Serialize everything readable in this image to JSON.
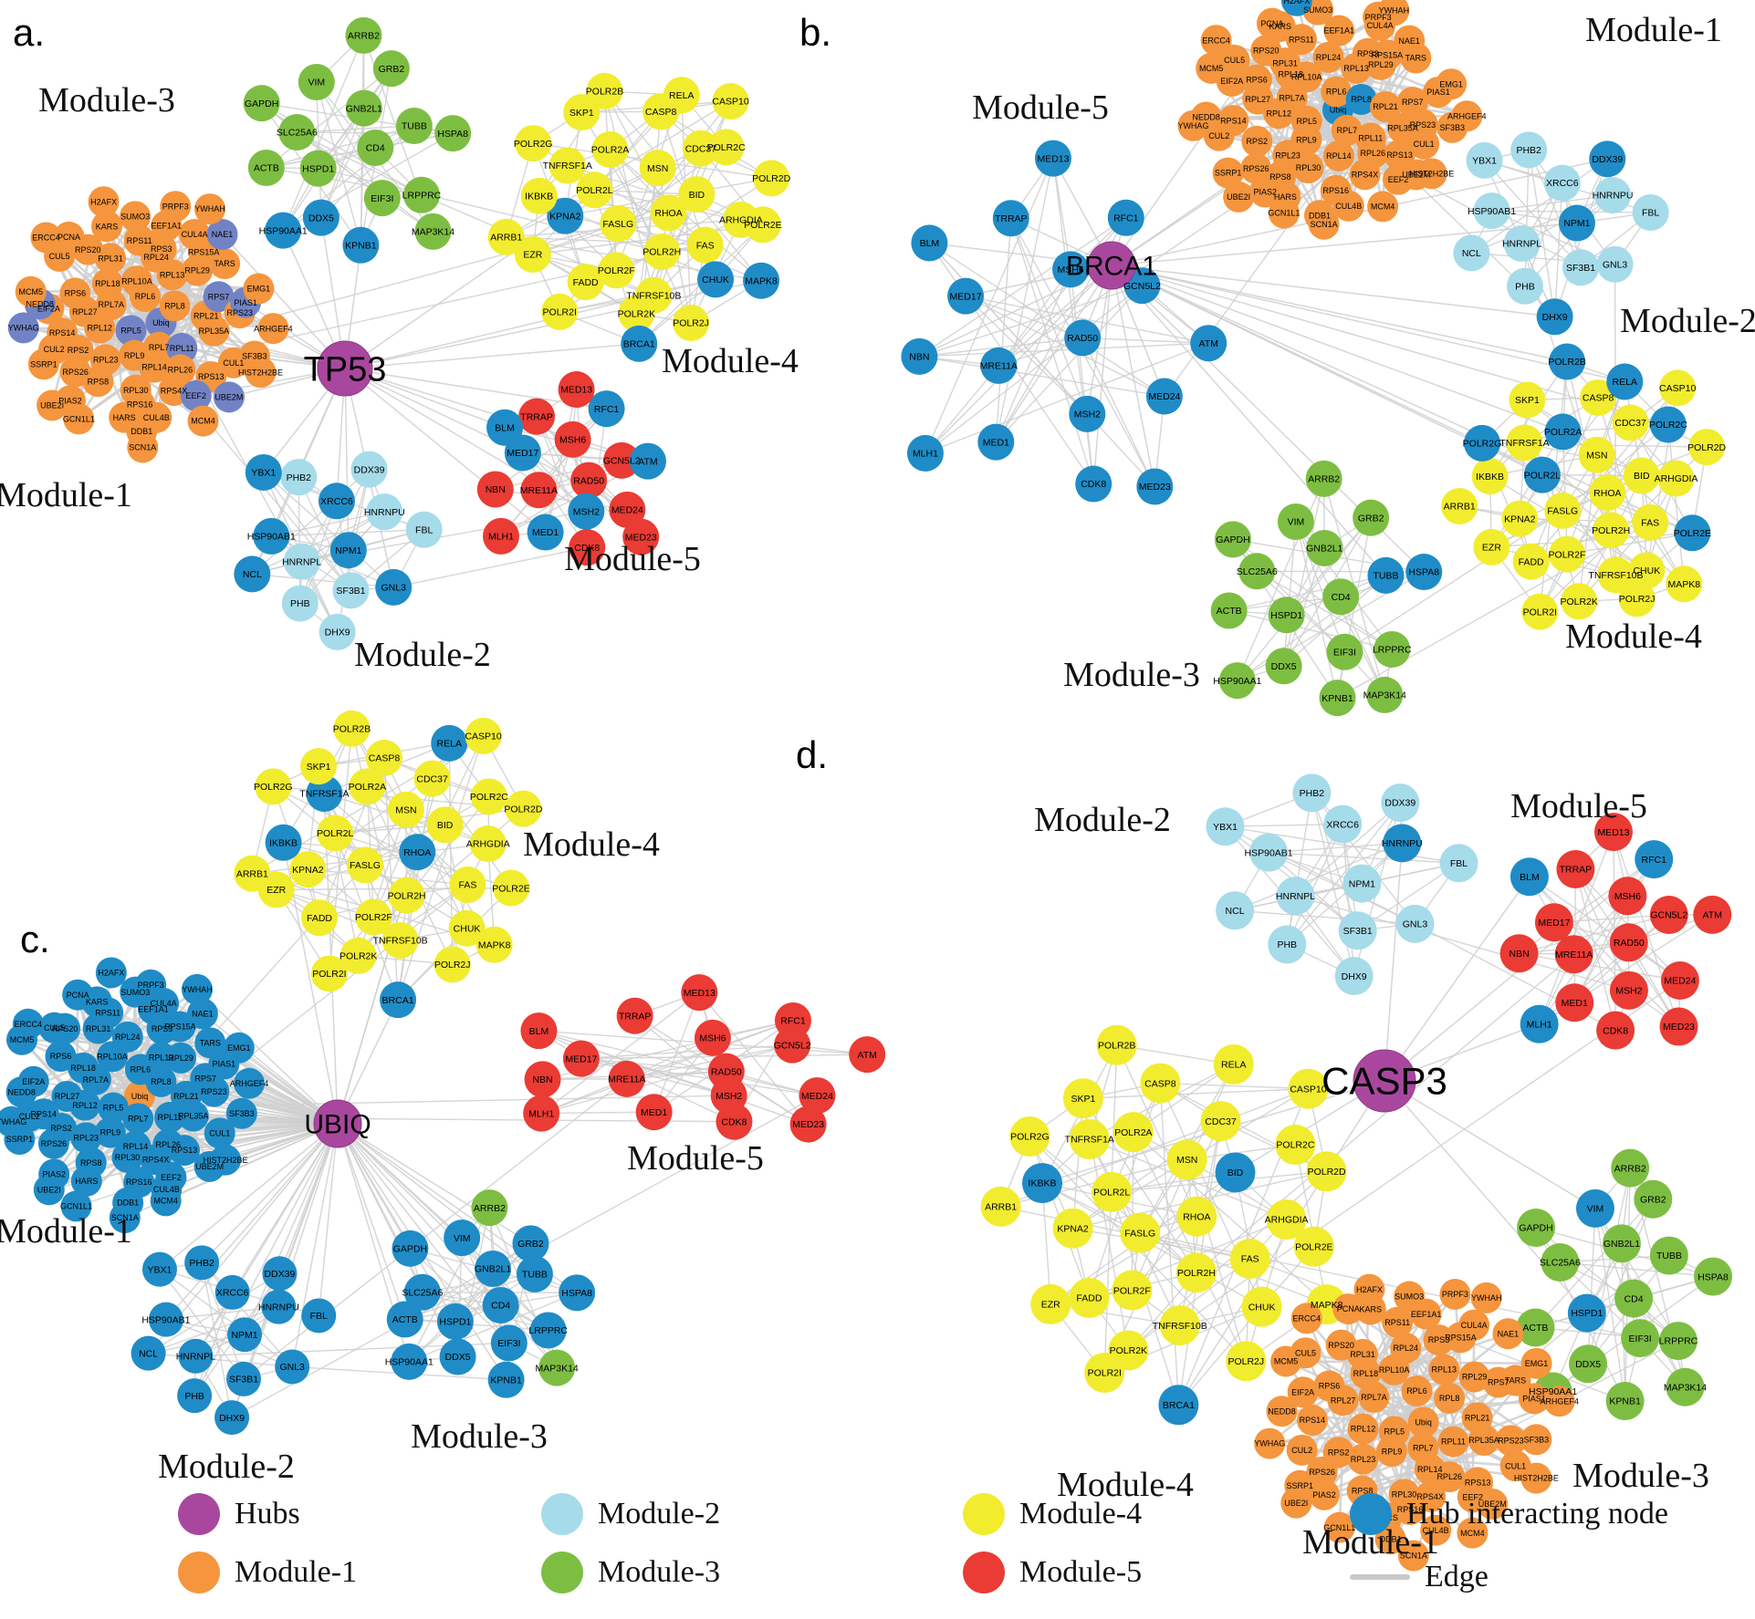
{
  "colors": {
    "hub": "#A9479F",
    "hub_stroke": "#8d3a85",
    "module1": "#F5953D",
    "module2": "#A6DBEA",
    "module3": "#7DBE42",
    "module4": "#F2EC2E",
    "module5": "#EA3B34",
    "blue": "#1F8CC7",
    "slate": "#7283C5",
    "edge": "#CFCFCF",
    "label": "#000000",
    "title": "#111111"
  },
  "gene_sets": {
    "module1": [
      "Ubiq",
      "RPL5",
      "RPL6",
      "RPL7",
      "RPL7A",
      "RPL8",
      "RPL9",
      "RPL10A",
      "RPL11",
      "RPL12",
      "RPL13",
      "RPL14",
      "RPL18",
      "RPL21",
      "RPL23",
      "RPL24",
      "RPL26",
      "RPL27",
      "RPL29",
      "RPL30",
      "RPL31",
      "RPL35A",
      "RPS2",
      "RPS3",
      "RPS4X",
      "RPS6",
      "RPS7",
      "RPS8",
      "RPS11",
      "RPS13",
      "RPS14",
      "RPS15A",
      "RPS16",
      "RPS20",
      "RPS23",
      "RPS26",
      "EEF1A1",
      "EEF2",
      "EIF2A",
      "TARS",
      "HARS",
      "KARS",
      "CUL1",
      "CUL2",
      "CUL4A",
      "CUL4B",
      "CUL5",
      "PIAS1",
      "PIAS2",
      "SUMO3",
      "UBE2M",
      "NEDD8",
      "NAE1",
      "DDB1",
      "PCNA",
      "SF3B3",
      "SSRP1",
      "PRPF3",
      "MCM4",
      "MCM5",
      "EMG1",
      "GCN1L1",
      "H2AFX",
      "HIST2H2BE",
      "YWHAG",
      "YWHAH",
      "SCN1A",
      "ERCC4",
      "ARHGEF4",
      "UBE2I"
    ],
    "module2": [
      "NPM1",
      "HNRNPL",
      "XRCC6",
      "SF3B1",
      "HSP90AB1",
      "HNRNPU",
      "PHB",
      "PHB2",
      "GNL3",
      "NCL",
      "DDX39",
      "DHX9",
      "YBX1",
      "FBL"
    ],
    "module3": [
      "CD4",
      "HSPD1",
      "GNB2L1",
      "EIF3I",
      "SLC25A6",
      "TUBB",
      "DDX5",
      "VIM",
      "LRPPRC",
      "ACTB",
      "GRB2",
      "KPNB1",
      "GAPDH",
      "HSPA8",
      "HSP90AA1",
      "ARRB2",
      "MAP3K14"
    ],
    "module4": [
      "RHOA",
      "FASLG",
      "MSN",
      "POLR2H",
      "POLR2L",
      "BID",
      "POLR2F",
      "POLR2A",
      "FAS",
      "KPNA2",
      "CDC37",
      "TNFRSF10B",
      "TNFRSF1A",
      "ARHGDIA",
      "FADD",
      "CASP8",
      "CHUK",
      "IKBKB",
      "POLR2C",
      "POLR2K",
      "SKP1",
      "POLR2E",
      "EZR",
      "RELA",
      "POLR2J",
      "POLR2G",
      "POLR2D",
      "POLR2I",
      "POLR2B",
      "MAPK8",
      "ARRB1",
      "CASP10",
      "BRCA1"
    ],
    "module5": [
      "RAD50",
      "MRE11A",
      "MSH6",
      "MSH2",
      "MED17",
      "GCN5L2",
      "MED1",
      "TRRAP",
      "MED24",
      "NBN",
      "RFC1",
      "CDK8",
      "BLM",
      "ATM",
      "MLH1",
      "MED13",
      "MED23"
    ]
  },
  "panels": [
    {
      "id": "a",
      "letter": "a.",
      "hub": "TP53",
      "modules": [
        {
          "module": "module3",
          "title": "Module-3",
          "blue": [
            "DDX5",
            "KPNB1",
            "HSP90AA1"
          ]
        },
        {
          "module": "module4",
          "title": "Module-4",
          "blue": [
            "KPNA2",
            "CHUK",
            "MAPK8",
            "BRCA1"
          ]
        },
        {
          "module": "module1",
          "title": "Module-1",
          "slate": [
            "RPL11",
            "RPL5",
            "EEF2",
            "UBE2M",
            "NEDD8",
            "PIAS1",
            "RPS7",
            "NAE1",
            "Ubiq",
            "YWHAG"
          ]
        },
        {
          "module": "module2",
          "title": "Module-2",
          "blue": [
            "XRCC6",
            "NPM1",
            "HSP90AB1",
            "GNL3",
            "NCL",
            "YBX1"
          ]
        },
        {
          "module": "module5",
          "title": "Module-5",
          "blue": [
            "MSH2",
            "MED17",
            "MED1",
            "RFC1",
            "BLM",
            "ATM"
          ]
        }
      ]
    },
    {
      "id": "b",
      "letter": "b.",
      "hub": "BRCA1",
      "modules": [
        {
          "module": "module5",
          "title": "Module-5",
          "blue_all_except": []
        },
        {
          "module": "module1",
          "title": "Module-1",
          "blue": [
            "H2AFX",
            "Ubiq",
            "RPL8"
          ]
        },
        {
          "module": "module2",
          "title": "Module-2",
          "blue": [
            "NPM1",
            "DHX9",
            "DDX39"
          ]
        },
        {
          "module": "module4",
          "title": "Module-4",
          "exclude": [
            "BRCA1"
          ],
          "blue": [
            "POLR2A",
            "POLR2C",
            "POLR2B",
            "POLR2L",
            "POLR2E",
            "POLR2G",
            "RELA"
          ]
        },
        {
          "module": "module3",
          "title": "Module-3",
          "blue": [
            "TUBB",
            "HSPA8"
          ]
        }
      ]
    },
    {
      "id": "c",
      "letter": "c.",
      "hub": "UBIQ",
      "modules": [
        {
          "module": "module4",
          "title": "Module-4",
          "blue": [
            "BRCA1",
            "IKBKB",
            "TNFRSF1A",
            "RELA",
            "RHOA"
          ]
        },
        {
          "module": "module1",
          "title": "Module-1",
          "blue_all_except": [
            "Ubiq"
          ],
          "special": {
            "Ubiq": "module1"
          }
        },
        {
          "module": "module5",
          "title": "Module-5",
          "blue": []
        },
        {
          "module": "module2",
          "title": "Module-2",
          "blue_all_except": []
        },
        {
          "module": "module3",
          "title": "Module-3",
          "blue": [
            "CD4",
            "HSPD1",
            "GNB2L1",
            "EIF3I",
            "SLC25A6",
            "TUBB",
            "DDX5",
            "VIM",
            "LRPPRC",
            "ACTB",
            "GRB2",
            "KPNB1",
            "GAPDH",
            "HSPA8",
            "HSP90AA1"
          ]
        }
      ]
    },
    {
      "id": "d",
      "letter": "d.",
      "hub": "CASP3",
      "modules": [
        {
          "module": "module2",
          "title": "Module-2",
          "blue": [
            "HNRNPU"
          ]
        },
        {
          "module": "module5",
          "title": "Module-5",
          "blue": [
            "RFC1",
            "MLH1",
            "BLM"
          ]
        },
        {
          "module": "module4",
          "title": "Module-4",
          "blue": [
            "BRCA1",
            "IKBKB",
            "BID"
          ]
        },
        {
          "module": "module3",
          "title": "Module-3",
          "blue": [
            "VIM",
            "HSPD1"
          ]
        },
        {
          "module": "module1",
          "title": "Module-1",
          "blue": []
        }
      ]
    }
  ],
  "legend": {
    "items": [
      {
        "key": "hubs",
        "label": "Hubs",
        "color": "hub"
      },
      {
        "key": "module1",
        "label": "Module-1",
        "color": "module1"
      },
      {
        "key": "module2",
        "label": "Module-2",
        "color": "module2"
      },
      {
        "key": "module3",
        "label": "Module-3",
        "color": "module3"
      },
      {
        "key": "module4",
        "label": "Module-4",
        "color": "module4"
      },
      {
        "key": "module5",
        "label": "Module-5",
        "color": "module5"
      },
      {
        "key": "hub_interacting",
        "label": "Hub interacting node",
        "color": "blue"
      },
      {
        "key": "edge",
        "label": "Edge",
        "color": "edge"
      }
    ]
  }
}
